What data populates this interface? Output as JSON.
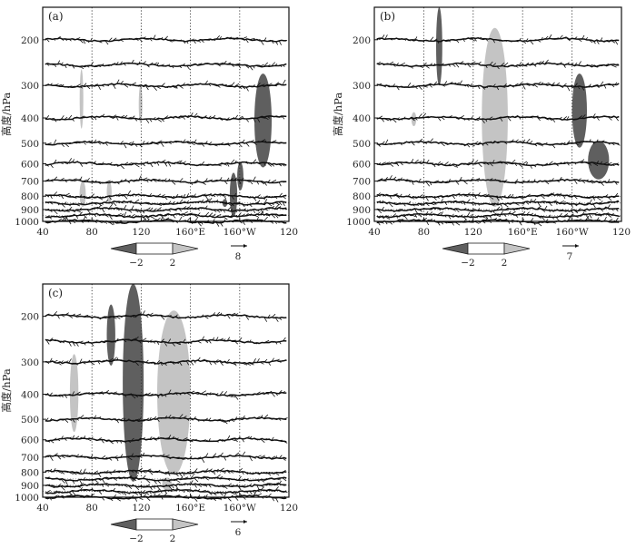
{
  "chart_data": [
    {
      "type": "vector-cross-section",
      "panel_label": "(a)",
      "ylabel": "高度/hPa",
      "x_ticks": [
        "40",
        "80",
        "120",
        "160°E",
        "160°W",
        "120"
      ],
      "y_ticks": [
        "200",
        "300",
        "400",
        "500",
        "600",
        "700",
        "800",
        "900",
        "1000"
      ],
      "xlim": [
        40,
        240
      ],
      "ylim": [
        1000,
        150
      ],
      "pressure_levels": [
        200,
        250,
        300,
        400,
        500,
        600,
        700,
        800,
        850,
        900,
        950,
        1000
      ],
      "grid": "vertical dotted at 80, 120, 160°E, 160°W",
      "colorbar_ticks": [
        "−2",
        "2"
      ],
      "reference_vector_label": "8",
      "shaded": [
        {
          "sign": "positive",
          "lon": [
            70,
            73
          ],
          "p": [
            260,
            440
          ]
        },
        {
          "sign": "positive",
          "lon": [
            118,
            121
          ],
          "p": [
            300,
            420
          ]
        },
        {
          "sign": "positive",
          "lon": [
            70,
            75
          ],
          "p": [
            700,
            880
          ]
        },
        {
          "sign": "positive",
          "lon": [
            92,
            96
          ],
          "p": [
            700,
            860
          ]
        },
        {
          "sign": "negative",
          "lon": [
            212,
            226
          ],
          "p": [
            270,
            620
          ]
        },
        {
          "sign": "negative",
          "lon": [
            192,
            198
          ],
          "p": [
            650,
            960
          ]
        },
        {
          "sign": "negative",
          "lon": [
            186,
            190
          ],
          "p": [
            820,
            880
          ]
        },
        {
          "sign": "negative",
          "lon": [
            198,
            203
          ],
          "p": [
            590,
            760
          ]
        }
      ]
    },
    {
      "type": "vector-cross-section",
      "panel_label": "(b)",
      "ylabel": "高度/hPa",
      "x_ticks": [
        "40",
        "80",
        "120",
        "160°E",
        "160°W",
        "120"
      ],
      "y_ticks": [
        "200",
        "300",
        "400",
        "500",
        "600",
        "700",
        "800",
        "900",
        "1000"
      ],
      "xlim": [
        40,
        240
      ],
      "ylim": [
        1000,
        150
      ],
      "pressure_levels": [
        200,
        250,
        300,
        400,
        500,
        600,
        700,
        800,
        850,
        900,
        950,
        1000
      ],
      "grid": "vertical dotted at 80, 120, 160°E, 160°W",
      "colorbar_ticks": [
        "−2",
        "2"
      ],
      "reference_vector_label": "7",
      "shaded": [
        {
          "sign": "negative",
          "lon": [
            90,
            95
          ],
          "p": [
            150,
            300
          ]
        },
        {
          "sign": "positive",
          "lon": [
            127,
            148
          ],
          "p": [
            180,
            880
          ]
        },
        {
          "sign": "positive",
          "lon": [
            70,
            74
          ],
          "p": [
            380,
            430
          ]
        },
        {
          "sign": "negative",
          "lon": [
            200,
            212
          ],
          "p": [
            270,
            520
          ]
        },
        {
          "sign": "negative",
          "lon": [
            213,
            230
          ],
          "p": [
            490,
            690
          ]
        }
      ]
    },
    {
      "type": "vector-cross-section",
      "panel_label": "(c)",
      "ylabel": "高度/hPa",
      "x_ticks": [
        "40",
        "80",
        "120",
        "160°E",
        "160°W",
        "120"
      ],
      "y_ticks": [
        "200",
        "300",
        "400",
        "500",
        "600",
        "700",
        "800",
        "900",
        "1000"
      ],
      "xlim": [
        40,
        240
      ],
      "ylim": [
        1000,
        150
      ],
      "pressure_levels": [
        200,
        250,
        300,
        400,
        500,
        600,
        700,
        800,
        850,
        900,
        950,
        1000
      ],
      "grid": "vertical dotted at 80, 120, 160°E, 160°W",
      "colorbar_ticks": [
        "−2",
        "2"
      ],
      "reference_vector_label": "6",
      "shaded": [
        {
          "sign": "negative",
          "lon": [
            105,
            122
          ],
          "p": [
            150,
            870
          ]
        },
        {
          "sign": "negative",
          "lon": [
            92,
            99
          ],
          "p": [
            180,
            310
          ]
        },
        {
          "sign": "positive",
          "lon": [
            62,
            69
          ],
          "p": [
            280,
            560
          ]
        },
        {
          "sign": "positive",
          "lon": [
            133,
            160
          ],
          "p": [
            190,
            820
          ]
        },
        {
          "sign": "positive",
          "lon": [
            137,
            145
          ],
          "p": [
            840,
            940
          ]
        }
      ]
    }
  ]
}
